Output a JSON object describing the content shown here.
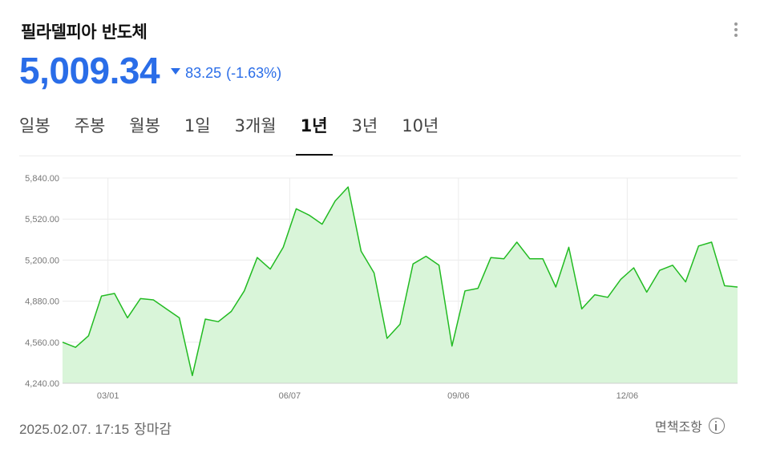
{
  "header": {
    "title": "필라델피아 반도체",
    "price": "5,009.34",
    "change": "83.25",
    "change_pct": "(-1.63%)",
    "direction": "down",
    "accent_color": "#2a6de8"
  },
  "tabs": [
    {
      "label": "일봉",
      "active": false
    },
    {
      "label": "주봉",
      "active": false
    },
    {
      "label": "월봉",
      "active": false
    },
    {
      "label": "1일",
      "active": false
    },
    {
      "label": "3개월",
      "active": false
    },
    {
      "label": "1년",
      "active": true
    },
    {
      "label": "3년",
      "active": false
    },
    {
      "label": "10년",
      "active": false
    }
  ],
  "footer": {
    "datetime": "2025.02.07. 17:15",
    "status": "장마감",
    "disclaimer": "면책조항",
    "info_icon": "info-icon"
  },
  "chart_data": {
    "type": "area",
    "line_color": "#22bb22",
    "fill_color": "#d9f5d9",
    "ylim": [
      4240,
      5840
    ],
    "y_ticks": [
      {
        "value": 4240,
        "label": "4,240.00"
      },
      {
        "value": 4560,
        "label": "4,560.00"
      },
      {
        "value": 4880,
        "label": "4,880.00"
      },
      {
        "value": 5200,
        "label": "5,200.00"
      },
      {
        "value": 5520,
        "label": "5,520.00"
      },
      {
        "value": 5840,
        "label": "5,840.00"
      }
    ],
    "x_ticks": [
      {
        "index": 3.5,
        "label": "03/01"
      },
      {
        "index": 17.5,
        "label": "06/07"
      },
      {
        "index": 30.5,
        "label": "09/06"
      },
      {
        "index": 43.5,
        "label": "12/06"
      }
    ],
    "grid": true,
    "values": [
      4560,
      4520,
      4610,
      4920,
      4940,
      4750,
      4900,
      4890,
      4820,
      4750,
      4300,
      4740,
      4720,
      4800,
      4960,
      5220,
      5130,
      5300,
      5600,
      5550,
      5480,
      5660,
      5770,
      5270,
      5100,
      4590,
      4700,
      5170,
      5230,
      5160,
      4530,
      4960,
      4980,
      5220,
      5210,
      5340,
      5210,
      5210,
      4990,
      5300,
      4820,
      4930,
      4910,
      5050,
      5140,
      4950,
      5120,
      5160,
      5030,
      5310,
      5340,
      5000,
      4990
    ]
  }
}
